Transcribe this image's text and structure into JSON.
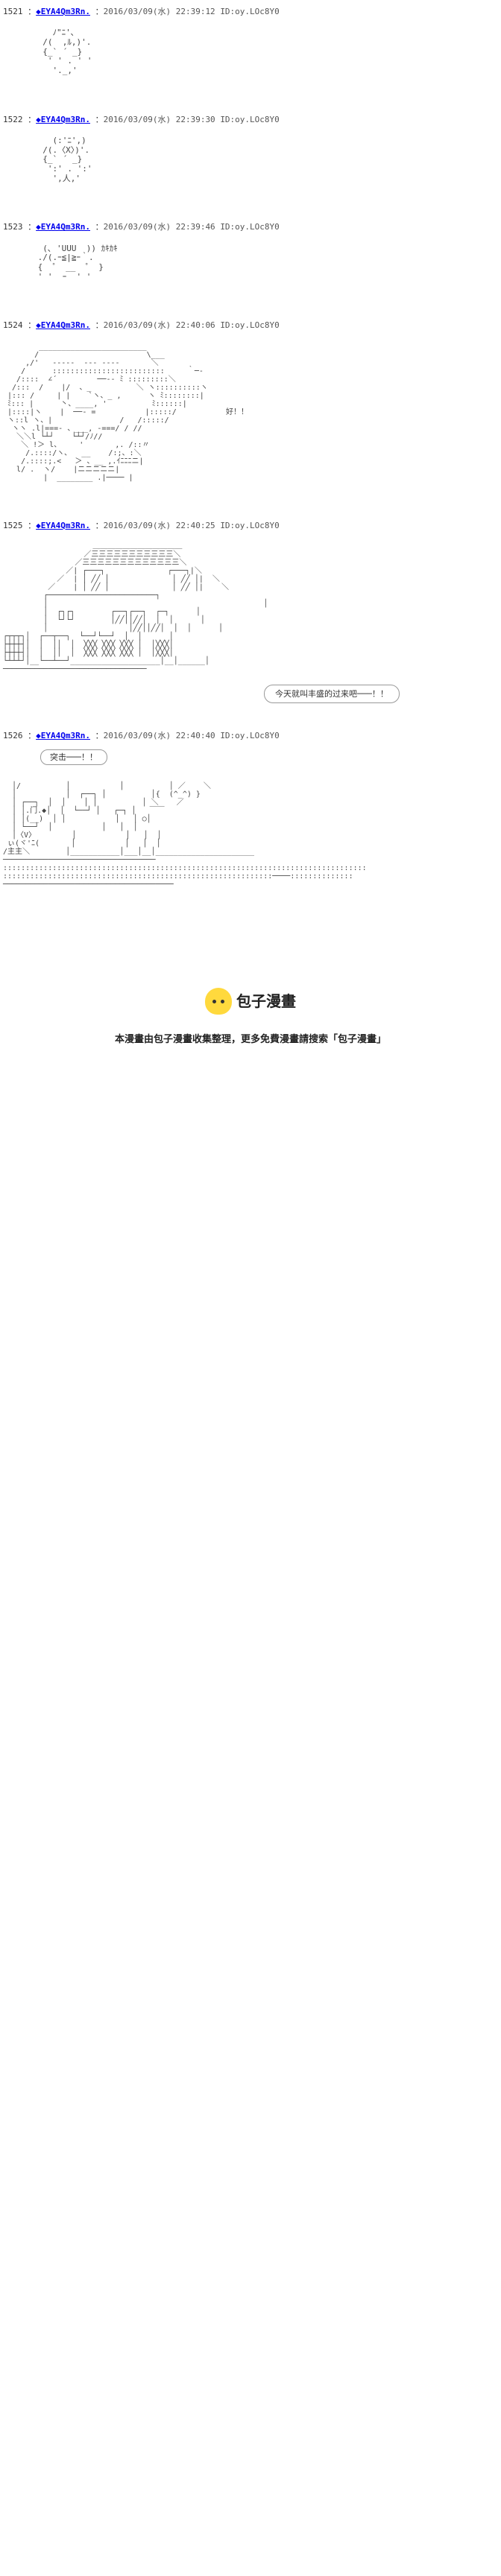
{
  "posts": [
    {
      "num": "1521",
      "trip": "◆EYA4Qm3Rn.",
      "date": "2016/03/09(水) 22:39:12",
      "id": "ID:oy.LOc8Y0",
      "aa": "    ﾉ\"ﾆ'､\n  /(  ,ﾙ,)'.\n  {_` ´ _}\n   ' ' . ' '\n    '._,'"
    },
    {
      "num": "1522",
      "trip": "◆EYA4Qm3Rn.",
      "date": "2016/03/09(水) 22:39:30",
      "id": "ID:oy.LOc8Y0",
      "aa": "    (:'ﾆ',)\n  /(.〈X〉)'.\n  {_` ´ _}\n   ':' . ':'\n    ',人,'"
    },
    {
      "num": "1523",
      "trip": "◆EYA4Qm3Rn.",
      "date": "2016/03/09(水) 22:39:46",
      "id": "ID:oy.LOc8Y0",
      "aa": "  (､ 'UUU  )) ｶｷｶｷ\n ./(.ｰ≦|≧ｰ｀.\n {  ゜ __  ゜ }\n ' '  ｰ  ' '"
    },
    {
      "num": "1524",
      "trip": "◆EYA4Qm3Rn.",
      "date": "2016/03/09(水) 22:40:06",
      "id": "ID:oy.LOc8Y0",
      "aa_wide": "        ________________________\n       /                        \\___\n     ,/'   -----  --- ----       ＼\n    /      :::::::::::::::::::::::::     ｀─-\n   /::::  ∠´         ──-- ﾐ :::::::::＼\n  /:::  /    |/  、_          ＼ ヽ::::::::::ヽ\n |::: /     | |    `ヽ、_ ,      ヽ ﾐ::::::::|\n ﾐ::: |      丶、____, '          ﾐ::::::|\n |::::|ヽ    |  ──- =           |:::::/           好！！\n ヽ::l ヽ、|               /   /:::::/\n  ヽヽ .l|===- 、___, -===/ / //\n   ＼＼l └┴┘    └┴┘/ﾉ//\n    ＼ !＞ l、    '       ,. /::〃\n     /.::::/ヽ､   __    /:;、:＼\n    /.::::;.<   ＞ 、__ ,.ｲﾆﾆﾆニ|\n   l/ .  ヽ/    |ニニニニニ|\n         |  ________ .|──── |",
      "dialogue": "好！！"
    },
    {
      "num": "1525",
      "trip": "◆EYA4Qm3Rn.",
      "date": "2016/03/09(水) 22:40:25",
      "id": "ID:oy.LOc8Y0",
      "aa_wide": "                    ＿＿＿＿＿＿＿＿＿＿＿＿\n                  ／三三三三三三三三三三三＼\n                ／三三三三三三三三三三三三三＼\n              ／| ┌───┐              ┌───┐|＼\n            ／  | │ ╱╱ │              │ ╱╱ │|  ＼\n          ／    | │ ╱╱ │              │ ╱╱ │|    ＼\n         ┌────────────────────────┐\n         │                                                │\n         │  ┌┐┌┐        ┌──┐┌──┐  ┌─┐      │\n         │  └┘└┘        │╱╱││╱╱│  │  │      │\n         │                  │╱╱││╱╱│  │  │      │\n┌┬┬┬┐│  ┌──┬──┐  └──┘└──┘  │  │      │\n├┼┼┼┤│  │  ││  │  ╳╳╳ ╳╳╳ ╳╳╳ │  │╳╳╳│\n├┼┼┼┤│  │  ││  │  ╳╳╳ ╳╳╳ ╳╳╳ │  │╳╳╳│\n└┴┴┴┘│__└──┴──┘____________________│__│______│\n────────────────────────────────",
      "speech": "今天就叫丰盛的过来吧───！！"
    },
    {
      "num": "1526",
      "trip": "◆EYA4Qm3Rn.",
      "date": "2016/03/09(水) 22:40:40",
      "id": "ID:oy.LOc8Y0",
      "action": "突击───！！",
      "aa_wide": "  │/          │           │          │ ／    ＼\n  │           │  ┌──┐ │          │{  (^_^) }\n  │ ┌──┐  │  │    │ │          │ ＼    ／\n  │ │.门.◆│  │  └──┘ │   ┌─┐ │   ￣￣\n  │ │(__)  │ │           │   │ ○│\n  │ └──┘  │           │   │  │\n  │〈V〉        │           │   │  │\n ぃ(ヾ'ﾆ(       │           │   │  │\n/主主＼        │___________│___│__│______________________\n──────────────────────────────────\n:::::::::::::::::::::::::::::::::::::::::::::::::::::::::::::::::::::::::::::::::\n::::::::::::::::::::::::::::::::::::::::::::::::::::::::::::────::::::::::::::\n──────────────────────────────────────"
    }
  ],
  "footer": {
    "site_name": "包子漫畫",
    "text": "本漫畫由包子漫畫收集整理，更多免費漫畫請搜索「包子漫畫」"
  }
}
